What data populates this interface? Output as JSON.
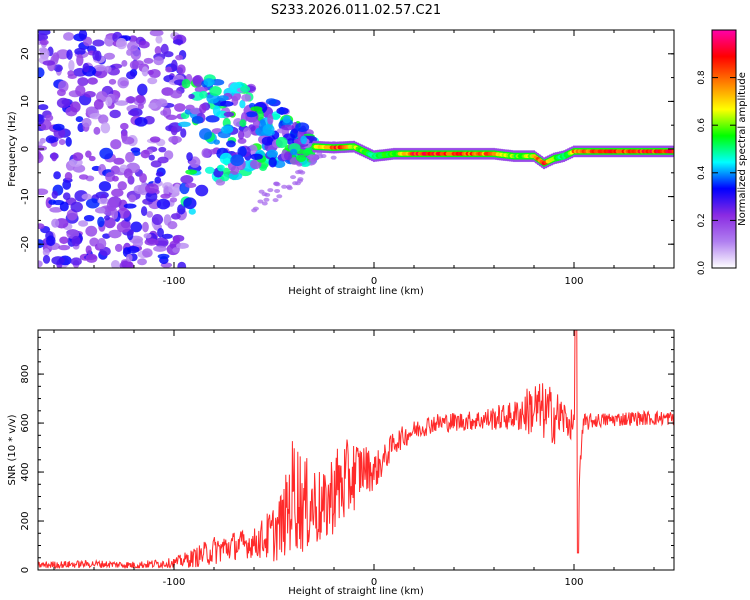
{
  "figure_title": "S233.2026.011.02.57.C21",
  "chart_data": [
    {
      "type": "heatmap",
      "title": "",
      "xlabel": "Height of straight line (km)",
      "ylabel": "Frequency (Hz)",
      "xlim": [
        -168,
        150
      ],
      "ylim": [
        -25,
        25
      ],
      "xticks": [
        -100,
        0,
        100
      ],
      "xtick_labels": [
        "-100",
        "0",
        "100"
      ],
      "yticks": [
        -20,
        -10,
        0,
        10,
        20
      ],
      "ytick_labels": [
        "-20",
        "-10",
        "0",
        "10",
        "20"
      ],
      "colorbar": {
        "label": "Normalized spectral amplitude",
        "range": [
          0,
          1
        ],
        "ticks": [
          0.0,
          0.2,
          0.4,
          0.6,
          0.8
        ],
        "tick_labels": [
          "0.0",
          "0.2",
          "0.4",
          "0.6",
          "0.8"
        ],
        "colormap": [
          "#ffffff",
          "#b07ff0",
          "#8a2be2",
          "#0000ff",
          "#00ffff",
          "#00ff00",
          "#ffff00",
          "#ff7f00",
          "#ff0000",
          "#ff00aa"
        ]
      },
      "ridge": {
        "x": [
          -30,
          -20,
          -10,
          0,
          10,
          20,
          40,
          60,
          70,
          80,
          85,
          90,
          95,
          100,
          120,
          150
        ],
        "frequency": [
          0.5,
          0.3,
          0.5,
          -1.5,
          -1.0,
          -1.0,
          -1.0,
          -1.0,
          -1.5,
          -1.5,
          -3.0,
          -2.0,
          -1.5,
          -0.5,
          -0.5,
          -0.5
        ],
        "amplitude": [
          0.6,
          0.9,
          0.7,
          0.5,
          0.6,
          0.9,
          0.9,
          0.8,
          0.6,
          0.7,
          0.95,
          0.6,
          0.5,
          0.8,
          0.9,
          0.9
        ]
      },
      "regions": [
        {
          "x_range": [
            -168,
            -95
          ],
          "frequency_range": [
            -25,
            25
          ],
          "amplitude": 0.25,
          "description_level": "scattered noise"
        },
        {
          "x_range": [
            -95,
            -30
          ],
          "frequency_range": [
            -12,
            15
          ],
          "amplitude": 0.4,
          "description_level": "broadband"
        }
      ]
    },
    {
      "type": "line",
      "title": "",
      "xlabel": "Height of straight line (km)",
      "ylabel": "SNR (10 * v/v)",
      "xlim": [
        -168,
        150
      ],
      "ylim": [
        0,
        980
      ],
      "xticks": [
        -100,
        0,
        100
      ],
      "xtick_labels": [
        "-100",
        "0",
        "100"
      ],
      "yticks": [
        0,
        200,
        400,
        600,
        800
      ],
      "ytick_labels": [
        "0",
        "200",
        "400",
        "600",
        "800"
      ],
      "color": "#ff2a2a",
      "series": [
        {
          "name": "SNR",
          "x": [
            -168,
            -140,
            -120,
            -100,
            -90,
            -80,
            -70,
            -60,
            -50,
            -45,
            -40,
            -35,
            -30,
            -25,
            -20,
            -15,
            -10,
            -5,
            0,
            5,
            10,
            20,
            30,
            50,
            70,
            80,
            90,
            95,
            100,
            101,
            102,
            103,
            105,
            110,
            130,
            150
          ],
          "values": [
            20,
            25,
            20,
            30,
            50,
            80,
            100,
            110,
            150,
            200,
            330,
            260,
            270,
            240,
            330,
            350,
            390,
            420,
            400,
            450,
            520,
            570,
            600,
            610,
            630,
            660,
            630,
            620,
            580,
            980,
            70,
            450,
            600,
            610,
            620,
            620
          ],
          "noise_amplitude": [
            15,
            15,
            15,
            20,
            40,
            60,
            60,
            60,
            120,
            150,
            250,
            200,
            180,
            150,
            180,
            180,
            150,
            100,
            80,
            60,
            50,
            40,
            40,
            40,
            60,
            120,
            120,
            80,
            60,
            0,
            0,
            80,
            40,
            30,
            30,
            30
          ]
        }
      ]
    }
  ]
}
